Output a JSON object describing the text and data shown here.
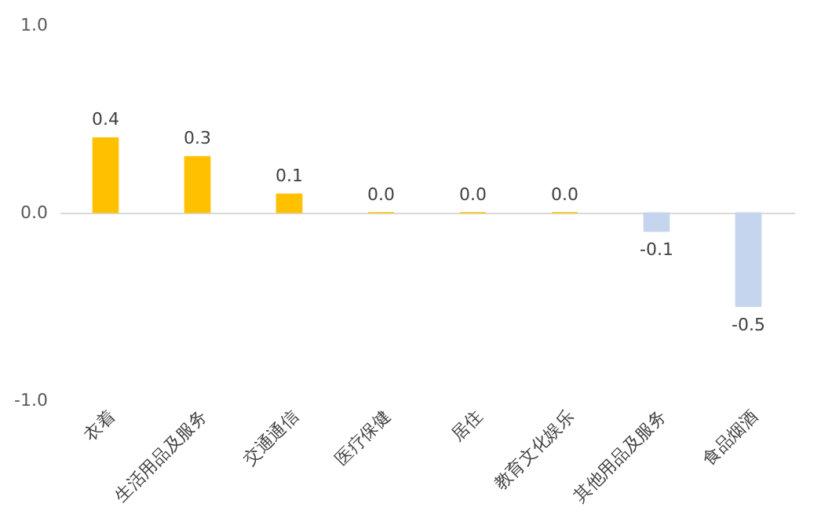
{
  "chart_data": {
    "type": "bar",
    "categories": [
      "衣着",
      "生活用品及服务",
      "交通通信",
      "医疗保健",
      "居住",
      "教育文化娱乐",
      "其他用品及服务",
      "食品烟酒"
    ],
    "values": [
      0.4,
      0.3,
      0.1,
      0.0,
      0.0,
      0.0,
      -0.1,
      -0.5
    ],
    "colors": [
      "#ffc000",
      "#ffc000",
      "#ffc000",
      "#ffc000",
      "#ffc000",
      "#ffc000",
      "#c5d5ee",
      "#c5d5ee"
    ],
    "ylim": [
      -1.0,
      1.0
    ],
    "yticks": [
      {
        "value": -1,
        "label": "-1.0"
      },
      {
        "value": 0,
        "label": "0.0"
      },
      {
        "value": 1,
        "label": "1.0"
      }
    ],
    "value_labels": [
      "0.4",
      "0.3",
      "0.1",
      "0.0",
      "0.0",
      "0.0",
      "-0.1",
      "-0.5"
    ]
  }
}
